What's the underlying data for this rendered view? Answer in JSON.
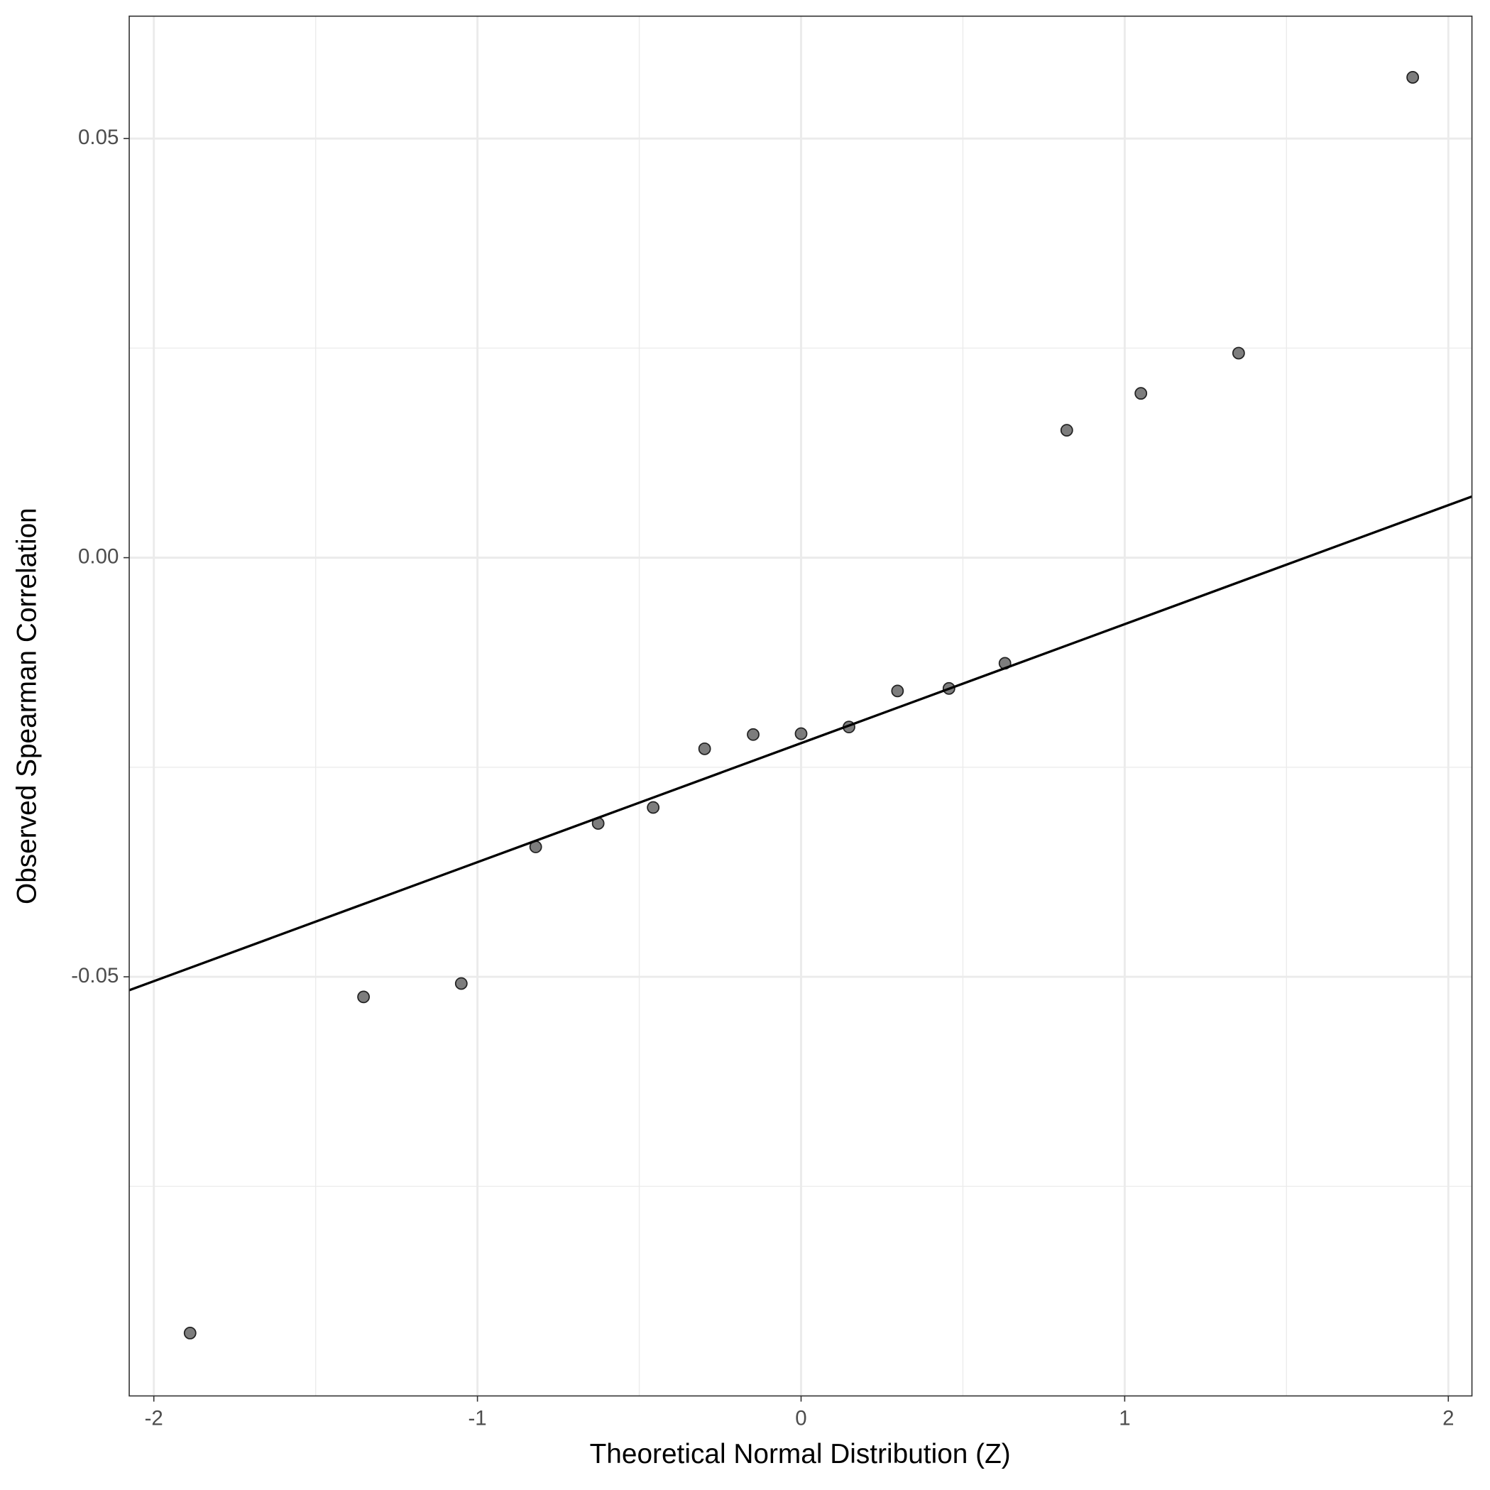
{
  "chart_data": {
    "type": "scatter",
    "x_label": "Theoretical Normal Distribution (Z)",
    "y_label": "Observed Spearman Correlation",
    "x": [
      -1.888,
      -1.352,
      -1.05,
      -0.82,
      -0.627,
      -0.457,
      -0.298,
      -0.148,
      0,
      0.148,
      0.298,
      0.457,
      0.63,
      0.821,
      1.05,
      1.352,
      1.89
    ],
    "values": [
      -0.0925,
      -0.0524,
      -0.0508,
      -0.0345,
      -0.0317,
      -0.0298,
      -0.0228,
      -0.0211,
      -0.021,
      -0.0202,
      -0.0159,
      -0.0156,
      -0.0126,
      0.0152,
      0.0196,
      0.0244,
      0.0573
    ],
    "color": "#666666",
    "reference_line": {
      "x": [
        -2.076,
        2.073
      ],
      "y": [
        -0.0516,
        0.0073
      ],
      "color": "#000000"
    },
    "xlim": [
      -2.076,
      2.073
    ],
    "ylim": [
      -0.1,
      0.0646
    ],
    "xticks": [
      -2,
      -1,
      0,
      1,
      2
    ],
    "yticks": [
      -0.05,
      {
        "value": 0,
        "label": "0.00"
      },
      0.05
    ],
    "x_minor_grid": [
      -1.5,
      -0.5,
      0.5,
      1.5
    ],
    "y_minor_grid": [
      -0.075,
      -0.025,
      0.025
    ],
    "grid": true
  }
}
